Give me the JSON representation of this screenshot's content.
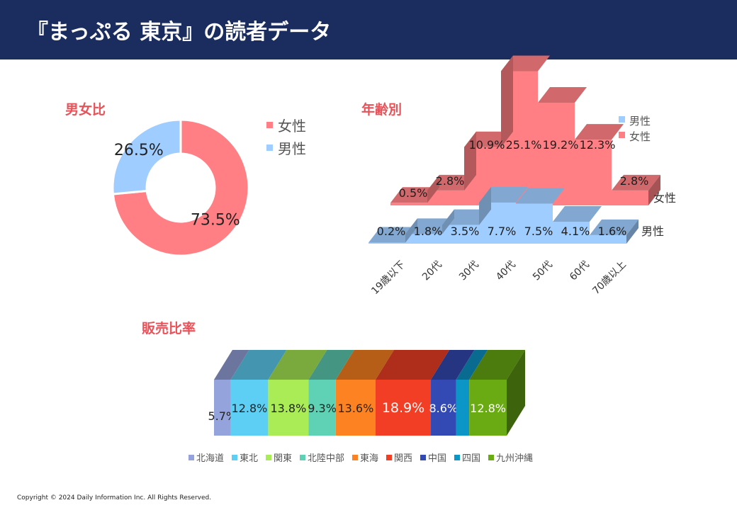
{
  "header": {
    "title": "『まっぷる 東京』の読者データ"
  },
  "sections": {
    "gender": "男女比",
    "age": "年齢別",
    "sales": "販売比率"
  },
  "colors": {
    "header_bg": "#1a2d5e",
    "section_title": "#e8535a",
    "female": "#ff7f84",
    "male": "#9fcdff"
  },
  "chart_data": [
    {
      "id": "gender",
      "type": "pie",
      "donut": true,
      "legend": "right",
      "slices": [
        {
          "name": "女性",
          "value": 73.5,
          "label": "73.5%",
          "color": "#ff7f84"
        },
        {
          "name": "男性",
          "value": 26.5,
          "label": "26.5%",
          "color": "#9fcdff"
        }
      ]
    },
    {
      "id": "age",
      "type": "area",
      "style": "3d",
      "legend": "top-right",
      "categories": [
        "19歳以下",
        "20代",
        "30代",
        "40代",
        "50代",
        "60代",
        "70歳以上"
      ],
      "series": [
        {
          "name": "男性",
          "values": [
            0.2,
            1.8,
            3.5,
            7.7,
            7.5,
            4.1,
            1.6
          ],
          "labels": [
            "0.2%",
            "1.8%",
            "3.5%",
            "7.7%",
            "7.5%",
            "4.1%",
            "1.6%"
          ],
          "color": "#9fcdff"
        },
        {
          "name": "女性",
          "values": [
            0.5,
            2.8,
            10.9,
            25.1,
            19.2,
            12.3,
            2.8
          ],
          "labels": [
            "0.5%",
            "2.8%",
            "10.9%",
            "25.1%",
            "19.2%",
            "12.3%",
            "2.8%"
          ],
          "color": "#ff7f84"
        }
      ]
    },
    {
      "id": "sales",
      "type": "bar",
      "style": "3d-stacked-100",
      "legend": "bottom",
      "series": [
        {
          "name": "北海道",
          "value": 5.7,
          "label": "5.7%",
          "color": "#95a3dc"
        },
        {
          "name": "東北",
          "value": 12.8,
          "label": "12.8%",
          "color": "#5dcff5"
        },
        {
          "name": "関東",
          "value": 13.8,
          "label": "13.8%",
          "color": "#a9ec56"
        },
        {
          "name": "北陸中部",
          "value": 9.3,
          "label": "9.3%",
          "color": "#5fd1b5"
        },
        {
          "name": "東海",
          "value": 13.6,
          "label": "13.6%",
          "color": "#fd8322"
        },
        {
          "name": "関西",
          "value": 18.9,
          "label": "18.9%",
          "color": "#f33e26"
        },
        {
          "name": "中国",
          "value": 8.6,
          "label": "8.6%",
          "color": "#3349b3"
        },
        {
          "name": "四国",
          "value": 4.5,
          "label": "",
          "color": "#0c95c7"
        },
        {
          "name": "九州沖縄",
          "value": 12.8,
          "label": "12.8%",
          "color": "#6aab14"
        }
      ]
    }
  ],
  "footer": {
    "copyright": "Copyright © 2024 Daily Information Inc. All Rights Reserved."
  }
}
